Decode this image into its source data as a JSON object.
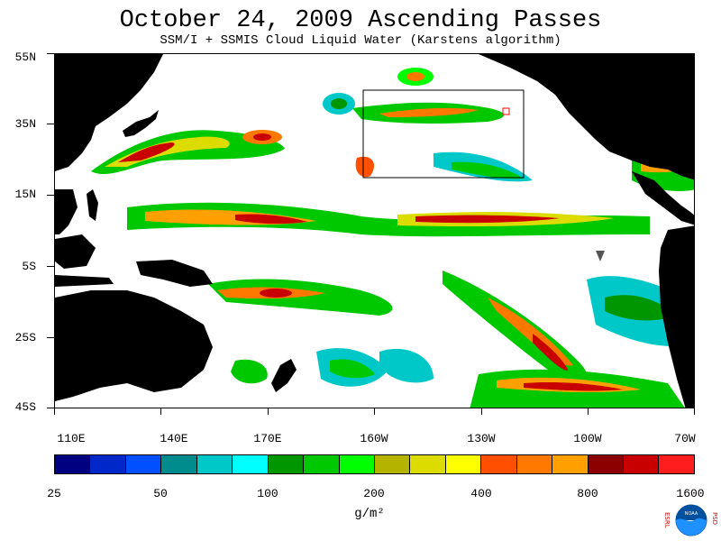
{
  "title": "October 24, 2009  Ascending Passes",
  "subtitle": "SSM/I + SSMIS Cloud Liquid Water (Karstens algorithm)",
  "lat_labels": [
    "55N",
    "35N",
    "15N",
    "5S",
    "25S",
    "45S"
  ],
  "lon_labels": [
    "110E",
    "140E",
    "170E",
    "160W",
    "130W",
    "100W",
    "70W"
  ],
  "colorbar": {
    "colors": [
      "#000080",
      "#0028c8",
      "#0050ff",
      "#008c8c",
      "#00c8c8",
      "#00ffff",
      "#009600",
      "#00c800",
      "#00ff00",
      "#b4b400",
      "#dcdc00",
      "#ffff00",
      "#ff5000",
      "#ff7800",
      "#ffa000",
      "#8c0000",
      "#c80000",
      "#ff1e1e"
    ],
    "tick_labels": [
      "25",
      "50",
      "100",
      "200",
      "400",
      "800",
      "1600"
    ],
    "units": "g/m²"
  },
  "logo": {
    "left_text": "ESRL",
    "right_text": "PSD",
    "center_text": "NOAA",
    "icon": "noaa-logo-icon"
  },
  "colors": {
    "land": "#000000",
    "ocean_bg": "#ffffff"
  }
}
